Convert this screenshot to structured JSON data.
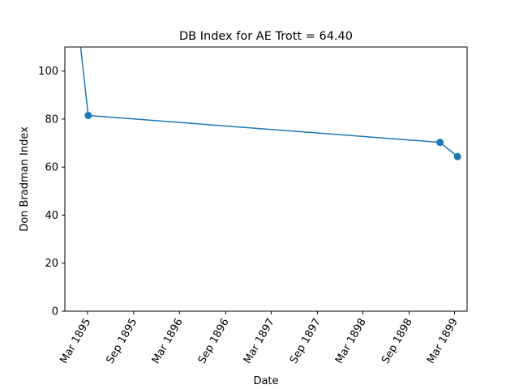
{
  "chart_data": {
    "type": "line",
    "title": "DB Index for AE Trott = 64.40",
    "xlabel": "Date",
    "ylabel": "Don Bradman Index",
    "x_tick_labels": [
      "Mar 1895",
      "Sep 1895",
      "Mar 1896",
      "Sep 1896",
      "Mar 1897",
      "Sep 1897",
      "Mar 1898",
      "Sep 1898",
      "Mar 1899"
    ],
    "x_tick_dates": [
      "1895-03-01",
      "1895-09-01",
      "1896-03-01",
      "1896-09-01",
      "1897-03-01",
      "1897-09-01",
      "1898-03-01",
      "1898-09-01",
      "1899-03-01"
    ],
    "xlim": [
      "1894-12-01",
      "1899-04-20"
    ],
    "y_ticks": [
      0,
      20,
      40,
      60,
      80,
      100
    ],
    "ylim": [
      0,
      110
    ],
    "grid": false,
    "series": [
      {
        "color": "#1f77b4",
        "points": [
          {
            "x": "1895-01-01",
            "y": 140,
            "marker": false
          },
          {
            "x": "1895-03-04",
            "y": 81.5,
            "marker": true
          },
          {
            "x": "1899-01-02",
            "y": 70.3,
            "marker": true
          },
          {
            "x": "1899-03-13",
            "y": 64.4,
            "marker": true
          }
        ]
      }
    ]
  }
}
